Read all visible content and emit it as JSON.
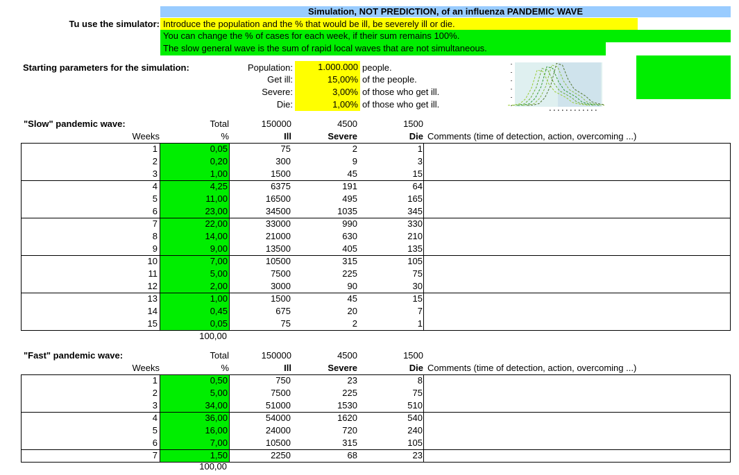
{
  "title": "Simulation, NOT PREDICTION, of an influenza PANDEMIC WAVE",
  "instructions": {
    "label": "Tu use the simulator:",
    "line1": "Introduce the population and the % that would be ill, be severely ill or die.",
    "line2": "You can change the % of cases for each week, if their sum remains 100%.",
    "line3": "The slow general wave is the sum of rapid local waves that are not simultaneous."
  },
  "params": {
    "label": "Starting parameters for the simulation:",
    "population_label": "Population:",
    "population_value": "1.000.000",
    "population_unit": "people.",
    "ill_label": "Get ill:",
    "ill_value": "15,00%",
    "ill_unit": "of the people.",
    "severe_label": "Severe:",
    "severe_value": "3,00%",
    "severe_unit": "of those who get ill.",
    "die_label": "Die:",
    "die_value": "1,00%",
    "die_unit": "of those who get ill."
  },
  "colors": {
    "green": "#00ee00",
    "yellow": "#ffff00",
    "title_blue": "#99ccff"
  },
  "slow": {
    "title": "\"Slow\" pandemic wave:",
    "weeks_label": "Weeks",
    "total_label": "Total",
    "pct_label": "%",
    "ill_total": "150000",
    "severe_total": "4500",
    "die_total": "1500",
    "ill_label": "Ill",
    "severe_label": "Severe",
    "die_label": "Die",
    "comments_label": "Comments (time of detection, action, overcoming ...)",
    "sum": "100,00",
    "rows": [
      {
        "week": "1",
        "pct": "0,05",
        "ill": "75",
        "severe": "2",
        "die": "1"
      },
      {
        "week": "2",
        "pct": "0,20",
        "ill": "300",
        "severe": "9",
        "die": "3"
      },
      {
        "week": "3",
        "pct": "1,00",
        "ill": "1500",
        "severe": "45",
        "die": "15"
      },
      {
        "week": "4",
        "pct": "4,25",
        "ill": "6375",
        "severe": "191",
        "die": "64"
      },
      {
        "week": "5",
        "pct": "11,00",
        "ill": "16500",
        "severe": "495",
        "die": "165"
      },
      {
        "week": "6",
        "pct": "23,00",
        "ill": "34500",
        "severe": "1035",
        "die": "345"
      },
      {
        "week": "7",
        "pct": "22,00",
        "ill": "33000",
        "severe": "990",
        "die": "330"
      },
      {
        "week": "8",
        "pct": "14,00",
        "ill": "21000",
        "severe": "630",
        "die": "210"
      },
      {
        "week": "9",
        "pct": "9,00",
        "ill": "13500",
        "severe": "405",
        "die": "135"
      },
      {
        "week": "10",
        "pct": "7,00",
        "ill": "10500",
        "severe": "315",
        "die": "105"
      },
      {
        "week": "11",
        "pct": "5,00",
        "ill": "7500",
        "severe": "225",
        "die": "75"
      },
      {
        "week": "12",
        "pct": "2,00",
        "ill": "3000",
        "severe": "90",
        "die": "30"
      },
      {
        "week": "13",
        "pct": "1,00",
        "ill": "1500",
        "severe": "45",
        "die": "15"
      },
      {
        "week": "14",
        "pct": "0,45",
        "ill": "675",
        "severe": "20",
        "die": "7"
      },
      {
        "week": "15",
        "pct": "0,05",
        "ill": "75",
        "severe": "2",
        "die": "1"
      }
    ]
  },
  "fast": {
    "title": "\"Fast\" pandemic wave:",
    "weeks_label": "Weeks",
    "total_label": "Total",
    "pct_label": "%",
    "ill_total": "150000",
    "severe_total": "4500",
    "die_total": "1500",
    "ill_label": "Ill",
    "severe_label": "Severe",
    "die_label": "Die",
    "comments_label": "Comments (time of detection, action, overcoming ...)",
    "sum": "100,00",
    "rows": [
      {
        "week": "1",
        "pct": "0,50",
        "ill": "750",
        "severe": "23",
        "die": "8"
      },
      {
        "week": "2",
        "pct": "5,00",
        "ill": "7500",
        "severe": "225",
        "die": "75"
      },
      {
        "week": "3",
        "pct": "34,00",
        "ill": "51000",
        "severe": "1530",
        "die": "510"
      },
      {
        "week": "4",
        "pct": "36,00",
        "ill": "54000",
        "severe": "1620",
        "die": "540"
      },
      {
        "week": "5",
        "pct": "16,00",
        "ill": "24000",
        "severe": "720",
        "die": "240"
      },
      {
        "week": "6",
        "pct": "7,00",
        "ill": "10500",
        "severe": "315",
        "die": "105"
      },
      {
        "week": "7",
        "pct": "1,50",
        "ill": "2250",
        "severe": "68",
        "die": "23"
      }
    ]
  },
  "chart_data": {
    "type": "line",
    "series_count": 5,
    "note_visible_ticks": true
  }
}
